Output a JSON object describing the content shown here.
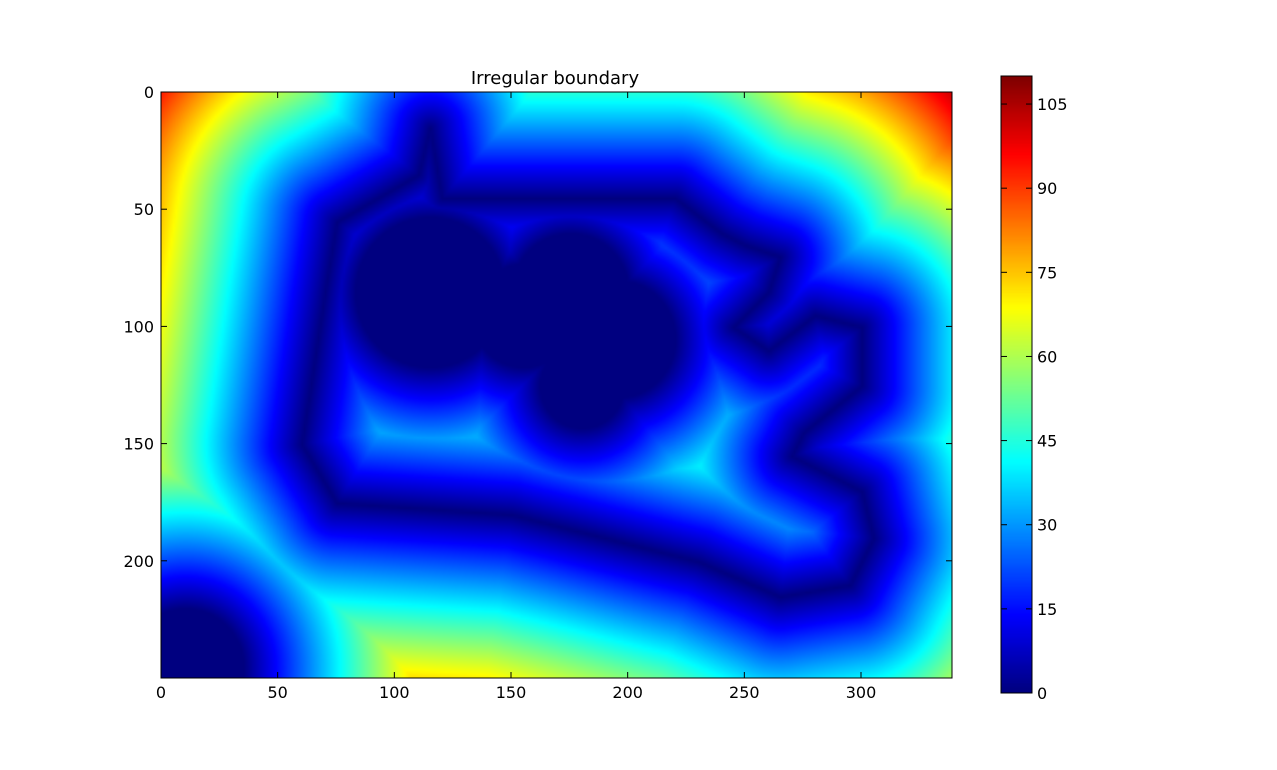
{
  "chart_data": [
    {
      "type": "heatmap",
      "title": "Irregular boundary",
      "colormap": "jet",
      "grid": false,
      "x_ticks": [
        0,
        50,
        100,
        150,
        200,
        250,
        300
      ],
      "x_tick_labels": [
        "0",
        "50",
        "100",
        "150",
        "200",
        "250",
        "300"
      ],
      "xlim": [
        0,
        339
      ],
      "y_ticks": [
        0,
        50,
        100,
        150,
        200
      ],
      "y_tick_labels": [
        "0",
        "50",
        "100",
        "150",
        "200"
      ],
      "ylim": [
        250,
        0
      ],
      "legend": "none",
      "description_values": {
        "colorbar_range": [
          0,
          110
        ],
        "colorbar_ticks": [
          0,
          15,
          30,
          45,
          60,
          75,
          90,
          105
        ],
        "colorbar_tick_labels": [
          "0",
          "15",
          "30",
          "45",
          "60",
          "75",
          "90",
          "105"
        ]
      },
      "boundary_shape_centerline": [
        [
          115,
          15
        ],
        [
          110,
          35
        ],
        [
          75,
          55
        ],
        [
          70,
          85
        ],
        [
          60,
          150
        ],
        [
          75,
          175
        ],
        [
          150,
          180
        ],
        [
          190,
          190
        ],
        [
          230,
          200
        ],
        [
          265,
          215
        ],
        [
          295,
          210
        ],
        [
          305,
          190
        ],
        [
          300,
          170
        ],
        [
          270,
          155
        ],
        [
          275,
          145
        ],
        [
          300,
          125
        ],
        [
          300,
          100
        ],
        [
          280,
          95
        ],
        [
          260,
          110
        ],
        [
          245,
          100
        ],
        [
          260,
          85
        ],
        [
          265,
          70
        ],
        [
          250,
          65
        ],
        [
          240,
          60
        ],
        [
          220,
          45
        ],
        [
          120,
          45
        ]
      ],
      "filled_blobs": [
        {
          "x": 115,
          "y": 85,
          "radius": 32
        },
        {
          "x": 155,
          "y": 95,
          "radius": 22
        },
        {
          "x": 175,
          "y": 85,
          "radius": 25
        },
        {
          "x": 195,
          "y": 105,
          "radius": 25
        },
        {
          "x": 180,
          "y": 125,
          "radius": 18
        },
        {
          "x": 10,
          "y": 245,
          "radius": 25
        }
      ]
    }
  ]
}
